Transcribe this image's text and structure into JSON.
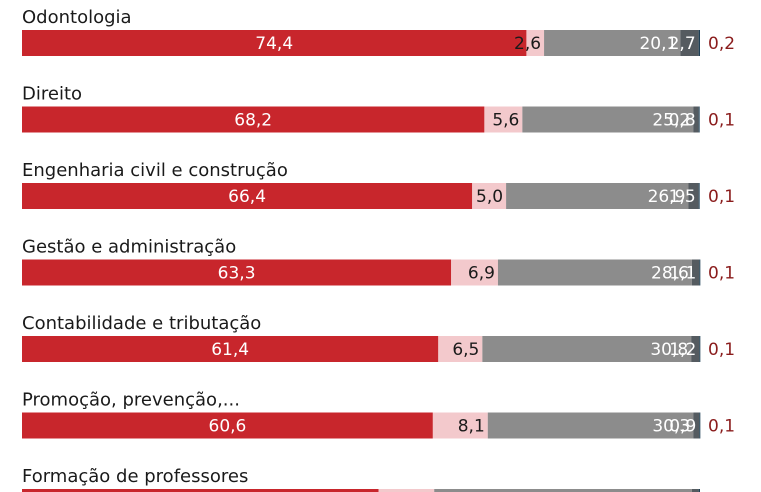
{
  "chart_data": {
    "type": "bar",
    "orientation": "horizontal",
    "stacked": true,
    "title": "",
    "xlabel": "",
    "ylabel": "",
    "xlim": [
      0,
      100
    ],
    "grid": false,
    "legend": "none",
    "colors": [
      "#c8262c",
      "#f3c9cc",
      "#8c8c8c",
      "#555b60",
      "#1f4056"
    ],
    "label_colors": [
      "#ffffff",
      "#1a1a1a",
      "#ffffff",
      "#ffffff",
      "#8a1c1c"
    ],
    "categories": [
      "Odontologia",
      "Direito",
      "Engenharia civil e construção",
      "Gestão e administração",
      "Contabilidade e tributação",
      "Promoção, prevenção,...",
      "Formação de professores"
    ],
    "series": [
      {
        "values": [
          74.4,
          68.2,
          66.4,
          63.3,
          61.4,
          60.6,
          52.6
        ],
        "labels": [
          "74,4",
          "68,2",
          "66,4",
          "63,3",
          "61,4",
          "60,6",
          ""
        ]
      },
      {
        "values": [
          2.6,
          5.6,
          5.0,
          6.9,
          6.5,
          8.1,
          8.2
        ],
        "labels": [
          "2,6",
          "5,6",
          "5,0",
          "6,9",
          "6,5",
          "8,1",
          ""
        ]
      },
      {
        "values": [
          20.1,
          25.2,
          26.9,
          28.6,
          30.8,
          30.3,
          38.0
        ],
        "labels": [
          "20,1",
          "25,2",
          "26,9",
          "28,6",
          "30,8",
          "30,3",
          ""
        ]
      },
      {
        "values": [
          2.7,
          0.8,
          1.5,
          1.1,
          1.2,
          0.9,
          1.0
        ],
        "labels": [
          "2,7",
          "0,8",
          "1,5",
          "1,1",
          "1,2",
          "0,9",
          ""
        ]
      },
      {
        "values": [
          0.2,
          0.1,
          0.1,
          0.1,
          0.1,
          0.1,
          0.2
        ],
        "labels": [
          "0,2",
          "0,1",
          "0,1",
          "0,1",
          "0,1",
          "0,1",
          ""
        ]
      }
    ]
  }
}
